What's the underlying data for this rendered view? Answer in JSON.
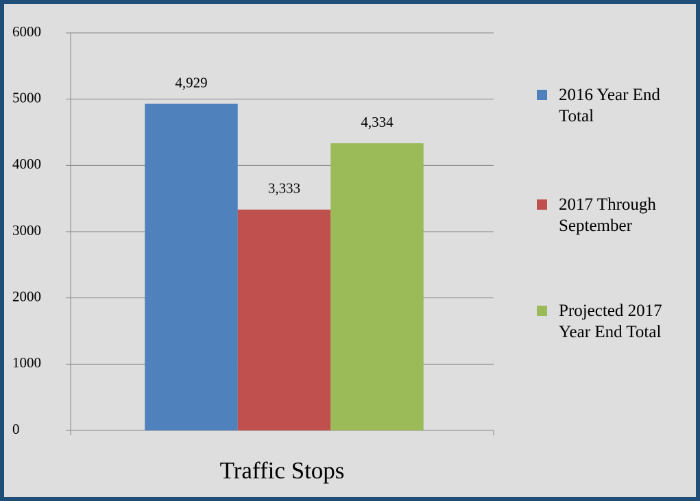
{
  "chart_data": {
    "type": "bar",
    "categories": [
      "Traffic Stops"
    ],
    "series": [
      {
        "name": "2016 Year End Total",
        "color": "#4f81bd",
        "values": [
          4929
        ],
        "value_labels": [
          "4,929"
        ]
      },
      {
        "name": "2017 Through September",
        "color": "#c0504d",
        "values": [
          3333
        ],
        "value_labels": [
          "3,333"
        ]
      },
      {
        "name": "Projected 2017 Year End Total",
        "color": "#9bbb59",
        "values": [
          4334
        ],
        "value_labels": [
          "4,334"
        ]
      }
    ],
    "ylim": [
      0,
      6000
    ],
    "yticks": [
      0,
      1000,
      2000,
      3000,
      4000,
      5000,
      6000
    ],
    "grid": true,
    "legend": "right"
  }
}
